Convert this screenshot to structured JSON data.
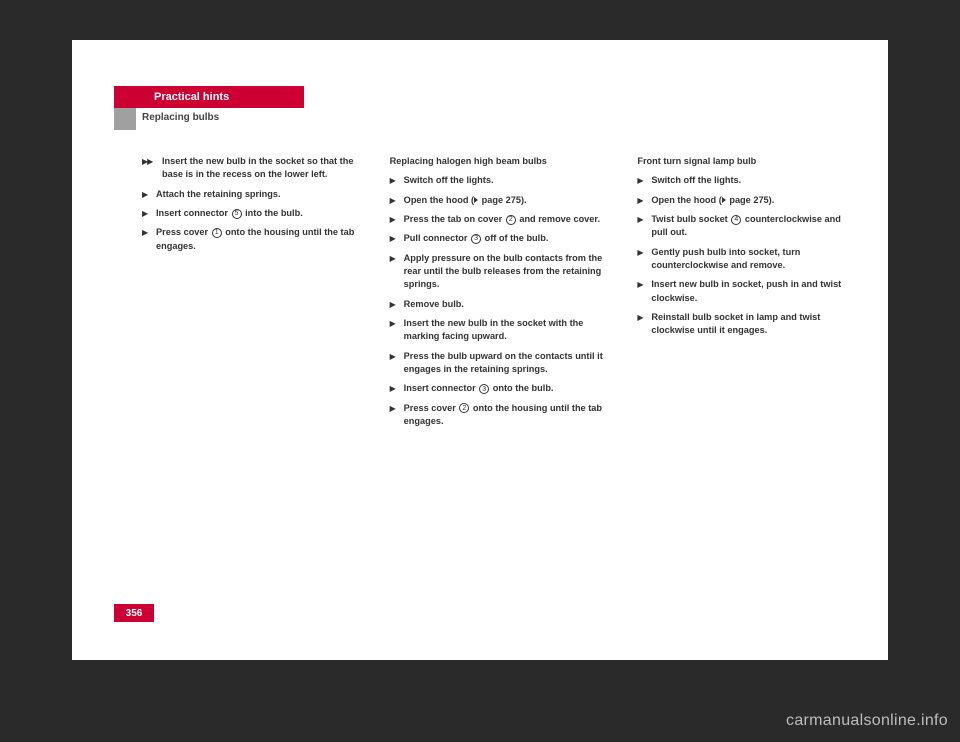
{
  "header": {
    "tab": "Practical hints",
    "subtitle": "Replacing bulbs"
  },
  "page_number": "356",
  "watermark": "carmanualsonline.info",
  "col1": {
    "steps": [
      {
        "dbl": true,
        "text": "Insert the new bulb in the socket so that the base is in the recess on the lower left."
      },
      {
        "text": "Attach the retaining springs."
      },
      {
        "parts": [
          "Insert connector ",
          {
            "circ": "5"
          },
          " into the bulb."
        ]
      },
      {
        "parts": [
          "Press cover ",
          {
            "circ": "1"
          },
          " onto the housing until the tab engages."
        ]
      }
    ]
  },
  "col2": {
    "heading": "Replacing halogen high beam bulbs",
    "steps": [
      {
        "text": "Switch off the lights."
      },
      {
        "parts": [
          "Open the hood (",
          {
            "tri": true
          },
          " page 275)."
        ]
      },
      {
        "parts": [
          "Press the tab on cover ",
          {
            "circ": "2"
          },
          " and remove cover."
        ]
      },
      {
        "parts": [
          "Pull connector ",
          {
            "circ": "3"
          },
          " off of the bulb."
        ]
      },
      {
        "text": "Apply pressure on the bulb contacts from the rear until the bulb releases from the retaining springs."
      },
      {
        "text": "Remove bulb."
      },
      {
        "text": "Insert the new bulb in the socket with the marking facing upward."
      },
      {
        "text": "Press the bulb upward on the contacts until it engages in the retaining springs."
      },
      {
        "parts": [
          "Insert connector ",
          {
            "circ": "3"
          },
          " onto the bulb."
        ]
      },
      {
        "parts": [
          "Press cover ",
          {
            "circ": "2"
          },
          " onto the housing until the tab engages."
        ]
      }
    ]
  },
  "col3": {
    "heading": "Front turn signal lamp bulb",
    "steps": [
      {
        "text": "Switch off the lights."
      },
      {
        "parts": [
          "Open the hood (",
          {
            "tri": true
          },
          " page 275)."
        ]
      },
      {
        "parts": [
          "Twist bulb socket ",
          {
            "circ": "4"
          },
          " counterclockwise and pull out."
        ]
      },
      {
        "text": "Gently push bulb into socket, turn counterclockwise and remove."
      },
      {
        "text": "Insert new bulb in socket, push in and twist clockwise."
      },
      {
        "text": "Reinstall bulb socket in lamp and twist clockwise until it engages."
      }
    ]
  }
}
